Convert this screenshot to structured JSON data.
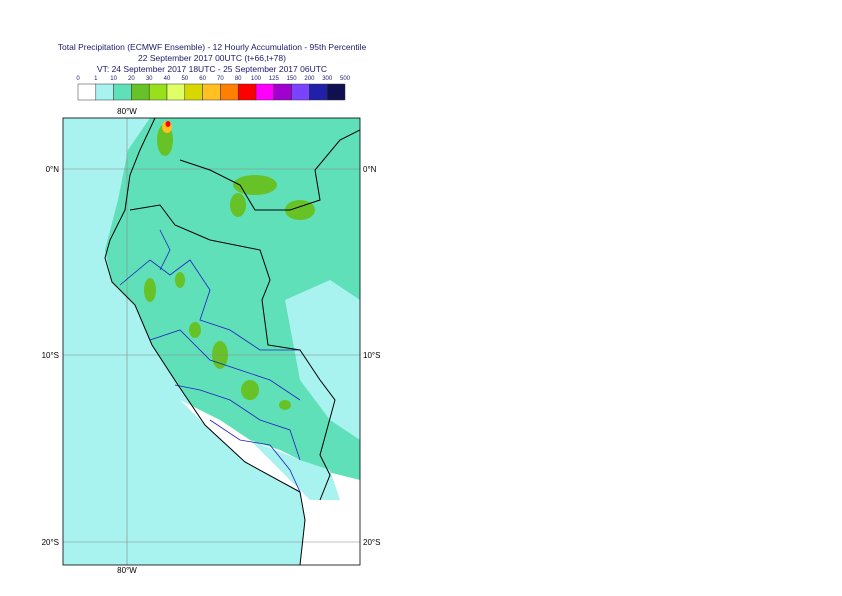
{
  "title": [
    "Total Precipitation (ECMWF Ensemble) - 12 Hourly Accumulation - 95th Percentile",
    "22 September 2017 00UTC (t+66,t+78)",
    "VT: 24 September 2017 18UTC - 25 September 2017 06UTC"
  ],
  "legend": {
    "labels": [
      "0",
      "1",
      "10",
      "20",
      "30",
      "40",
      "50",
      "60",
      "70",
      "80",
      "100",
      "125",
      "150",
      "200",
      "300",
      "500"
    ],
    "colors": [
      "#ffffff",
      "#a8f2f0",
      "#5fe0b8",
      "#66c226",
      "#98e01c",
      "#e0ff66",
      "#d8d800",
      "#ffc020",
      "#ff8000",
      "#ff0000",
      "#ff00ff",
      "#a000d0",
      "#7a44ff",
      "#2020a8",
      "#101050"
    ]
  },
  "meridian_labels": {
    "top": "80°W",
    "bottom": "80°W"
  },
  "parallel_labels": {
    "left": [
      "0°N",
      "10°S",
      "20°S"
    ],
    "right": [
      "0°N",
      "10°S",
      "20°S"
    ]
  }
}
